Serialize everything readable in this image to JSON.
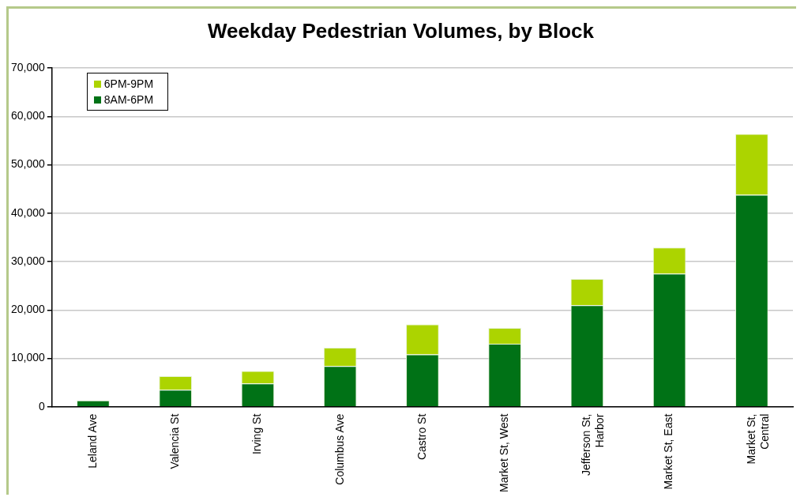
{
  "chart_data": {
    "type": "bar",
    "title": "Weekday Pedestrian Volumes, by Block",
    "categories": [
      "Leland Ave",
      "Valencia St",
      "Irving St",
      "Columbus Ave",
      "Castro St",
      "Market St, West",
      "Jefferson St, Harbor",
      "Market St, East",
      "Market St, Central"
    ],
    "series": [
      {
        "name": "8AM-6PM",
        "color": "#007216",
        "values": [
          1300,
          3500,
          4800,
          8400,
          10800,
          13000,
          21000,
          27500,
          43800
        ]
      },
      {
        "name": "6PM-9PM",
        "color": "#acd400",
        "values": [
          0,
          2800,
          2600,
          3800,
          6200,
          3300,
          5400,
          5400,
          12600
        ]
      }
    ],
    "stacked": true,
    "ylim": [
      0,
      70000
    ],
    "yticks": [
      0,
      {
        "value": 10000,
        "label": "10,000"
      },
      {
        "value": 20000,
        "label": "20,000"
      },
      {
        "value": 30000,
        "label": "30,000"
      },
      {
        "value": 40000,
        "label": "40,000"
      },
      {
        "value": 50000,
        "label": "50,000"
      },
      {
        "value": 60000,
        "label": "60,000"
      },
      {
        "value": 70000,
        "label": "70,000"
      }
    ],
    "grid": "y",
    "legend": "top left"
  }
}
